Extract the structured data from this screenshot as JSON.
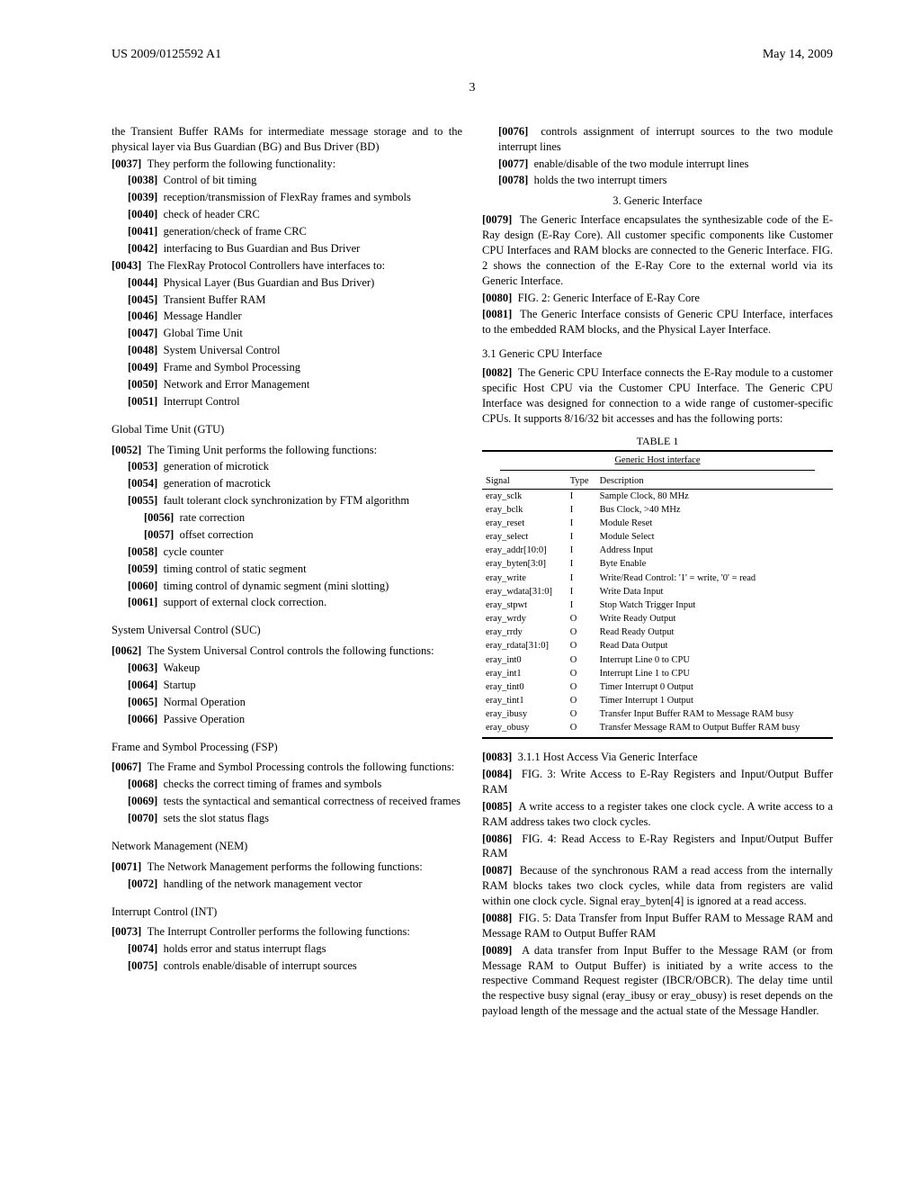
{
  "header": {
    "left": "US 2009/0125592 A1",
    "right": "May 14, 2009",
    "pageNum": "3"
  },
  "colLeft": {
    "p_top": "the Transient Buffer RAMs for intermediate message storage and to the physical layer via Bus Guardian (BG) and Bus Driver (BD)",
    "p37": "They perform the following functionality:",
    "p38": "Control of bit timing",
    "p39": "reception/transmission of FlexRay frames and symbols",
    "p40": "check of header CRC",
    "p41": "generation/check of frame CRC",
    "p42": "interfacing to Bus Guardian and Bus Driver",
    "p43": "The FlexRay Protocol Controllers have interfaces to:",
    "p44": "Physical Layer (Bus Guardian and Bus Driver)",
    "p45": "Transient Buffer RAM",
    "p46": "Message Handler",
    "p47": "Global Time Unit",
    "p48": "System Universal Control",
    "p49": "Frame and Symbol Processing",
    "p50": "Network and Error Management",
    "p51": "Interrupt Control",
    "gtu_hdr": "Global Time Unit (GTU)",
    "p52": "The Timing Unit performs the following functions:",
    "p53": "generation of microtick",
    "p54": "generation of macrotick",
    "p55": "fault tolerant clock synchronization by FTM algorithm",
    "p56": "rate correction",
    "p57": "offset correction",
    "p58": "cycle counter",
    "p59": "timing control of static segment",
    "p60": "timing control of dynamic segment (mini slotting)",
    "p61": "support of external clock correction.",
    "suc_hdr": "System Universal Control (SUC)",
    "p62": "The System Universal Control controls the following functions:",
    "p63": "Wakeup",
    "p64": "Startup",
    "p65": "Normal Operation",
    "p66": "Passive Operation",
    "fsp_hdr": "Frame and Symbol Processing (FSP)",
    "p67": "The Frame and Symbol Processing controls the following functions:",
    "p68": "checks the correct timing of frames and symbols",
    "p69": "tests the syntactical and semantical correctness of received frames",
    "p70": "sets the slot status flags",
    "nem_hdr": "Network Management (NEM)",
    "p71": "The Network Management performs the following functions:",
    "p72": "handling of the network management vector",
    "int_hdr": "Interrupt Control (INT)",
    "p73": "The Interrupt Controller performs the following functions:",
    "p74": "holds error and status interrupt flags",
    "p75": "controls enable/disable of interrupt sources"
  },
  "colRight": {
    "p76": "controls assignment of interrupt sources to the two module interrupt lines",
    "p77": "enable/disable of the two module interrupt lines",
    "p78": "holds the two interrupt timers",
    "sec3_hdr": "3. Generic Interface",
    "p79": "The Generic Interface encapsulates the synthesizable code of the E-Ray design (E-Ray Core). All customer specific components like Customer CPU Interfaces and RAM blocks are connected to the Generic Interface. FIG. 2 shows the connection of the E-Ray Core to the external world via its Generic Interface.",
    "p80": "FIG. 2: Generic Interface of E-Ray Core",
    "p81": "The Generic Interface consists of Generic CPU Interface, interfaces to the embedded RAM blocks, and the Physical Layer Interface.",
    "sec31_hdr": "3.1 Generic CPU Interface",
    "p82": "The Generic CPU Interface connects the E-Ray module to a customer specific Host CPU via the Customer CPU Interface. The Generic CPU Interface was designed for connection to a wide range of customer-specific CPUs. It supports 8/16/32 bit accesses and has the following ports:",
    "tableCaption": "TABLE 1",
    "tableSub": "Generic Host interface",
    "th1": "Signal",
    "th2": "Type",
    "th3": "Description",
    "rows": [
      [
        "eray_sclk",
        "I",
        "Sample Clock, 80 MHz"
      ],
      [
        "eray_bclk",
        "I",
        "Bus Clock, >40 MHz"
      ],
      [
        "eray_reset",
        "I",
        "Module Reset"
      ],
      [
        "eray_select",
        "I",
        "Module Select"
      ],
      [
        "eray_addr[10:0]",
        "I",
        "Address Input"
      ],
      [
        "eray_byten[3:0]",
        "I",
        "Byte Enable"
      ],
      [
        "eray_write",
        "I",
        "Write/Read Control: '1' = write, '0' = read"
      ],
      [
        "eray_wdata[31:0]",
        "I",
        "Write Data Input"
      ],
      [
        "eray_stpwt",
        "I",
        "Stop Watch Trigger Input"
      ],
      [
        "eray_wrdy",
        "O",
        "Write Ready Output"
      ],
      [
        "eray_rrdy",
        "O",
        "Read Ready Output"
      ],
      [
        "eray_rdata[31:0]",
        "O",
        "Read Data Output"
      ],
      [
        "eray_int0",
        "O",
        "Interrupt Line 0 to CPU"
      ],
      [
        "eray_int1",
        "O",
        "Interrupt Line 1 to CPU"
      ],
      [
        "eray_tint0",
        "O",
        "Timer Interrupt 0 Output"
      ],
      [
        "eray_tint1",
        "O",
        "Timer Interrupt 1 Output"
      ],
      [
        "eray_ibusy",
        "O",
        "Transfer Input Buffer RAM to Message RAM busy"
      ],
      [
        "eray_obusy",
        "O",
        "Transfer Message RAM to Output Buffer RAM busy"
      ]
    ],
    "p83": "3.1.1 Host Access Via Generic Interface",
    "p84": "FIG. 3: Write Access to E-Ray Registers and Input/Output Buffer RAM",
    "p85": "A write access to a register takes one clock cycle. A write access to a RAM address takes two clock cycles.",
    "p86": "FIG. 4: Read Access to E-Ray Registers and Input/Output Buffer RAM",
    "p87": "Because of the synchronous RAM a read access from the internally RAM blocks takes two clock cycles, while data from registers are valid within one clock cycle. Signal eray_byten[4] is ignored at a read access.",
    "p88": "FIG. 5: Data Transfer from Input Buffer RAM to Message RAM and Message RAM to Output Buffer RAM",
    "p89": "A data transfer from Input Buffer to the Message RAM (or from Message RAM to Output Buffer) is initiated by a write access to the respective Command Request register (IBCR/OBCR). The delay time until the respective busy signal (eray_ibusy or eray_obusy) is reset depends on the payload length of the message and the actual state of the Message Handler."
  }
}
